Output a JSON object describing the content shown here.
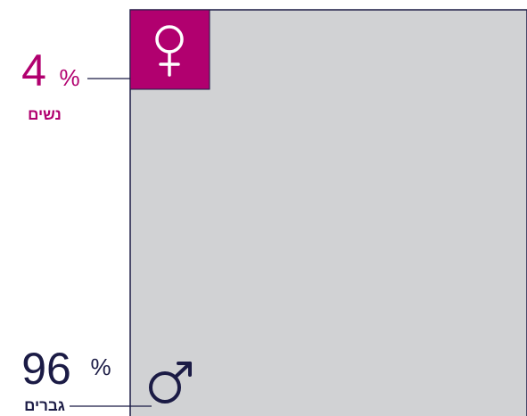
{
  "chart_data": {
    "type": "square",
    "categories": [
      "נשים",
      "גברים"
    ],
    "values": [
      4,
      96
    ],
    "unit": "%",
    "colors": [
      "#b1006f",
      "#d1d2d4"
    ],
    "text_colors": [
      "#b1006f",
      "#1b1b45"
    ],
    "outline": "#1b1b45"
  }
}
